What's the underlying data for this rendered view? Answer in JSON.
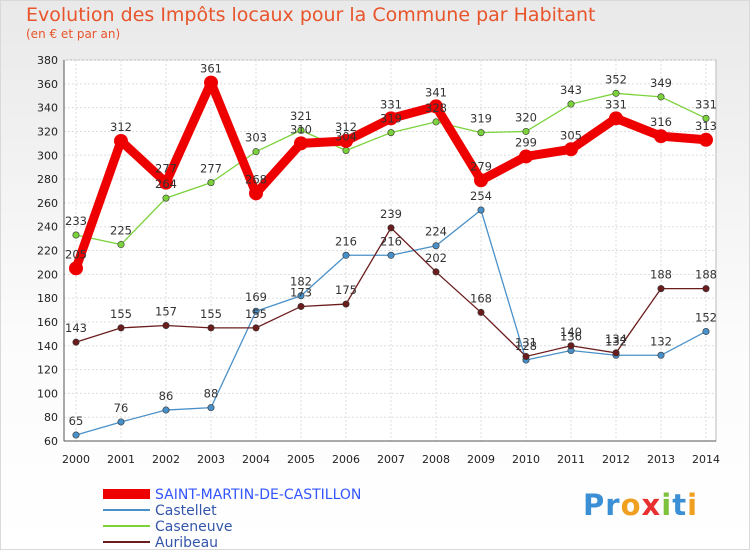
{
  "chart_data": {
    "type": "line",
    "title": "Evolution des Impôts locaux pour la Commune par Habitant",
    "subtitle": "(en € et par an)",
    "x": [
      2000,
      2001,
      2002,
      2003,
      2004,
      2005,
      2006,
      2007,
      2008,
      2009,
      2010,
      2011,
      2012,
      2013,
      2014
    ],
    "ylim": [
      60,
      380
    ],
    "yticks": [
      60,
      80,
      100,
      120,
      140,
      160,
      180,
      200,
      220,
      240,
      260,
      280,
      300,
      320,
      340,
      360,
      380
    ],
    "grid": true,
    "legend_position": "bottom",
    "series": [
      {
        "name": "SAINT-MARTIN-DE-CASTILLON",
        "color": "#ee0000",
        "emphasis": true,
        "values": [
          205,
          312,
          277,
          361,
          268,
          310,
          312,
          331,
          341,
          279,
          299,
          305,
          331,
          316,
          313
        ]
      },
      {
        "name": "Castellet",
        "color": "#4a90c8",
        "values": [
          65,
          76,
          86,
          88,
          169,
          182,
          216,
          216,
          224,
          254,
          128,
          136,
          132,
          132,
          152
        ]
      },
      {
        "name": "Caseneuve",
        "color": "#7cd23c",
        "values": [
          233,
          225,
          264,
          277,
          303,
          321,
          304,
          319,
          328,
          319,
          320,
          343,
          352,
          349,
          331
        ]
      },
      {
        "name": "Auribeau",
        "color": "#6b1d1d",
        "values": [
          143,
          155,
          157,
          155,
          155,
          173,
          175,
          239,
          202,
          168,
          131,
          140,
          134,
          188,
          188
        ]
      }
    ]
  },
  "logo": {
    "text": "Proxiti",
    "letters": [
      "P",
      "r",
      "o",
      "x",
      "i",
      "t",
      "i"
    ],
    "colors": [
      "#3b8fd4",
      "#3b8fd4",
      "#f0a020",
      "#e83030",
      "#7cc23c",
      "#3b8fd4",
      "#f0a020"
    ]
  }
}
